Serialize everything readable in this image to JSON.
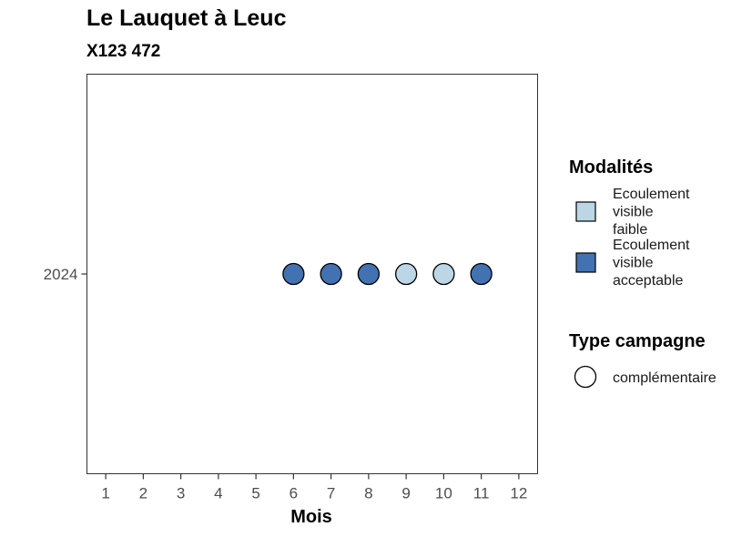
{
  "chart_data": {
    "type": "scatter",
    "title": "Le Lauquet à Leuc",
    "subtitle": "X123 472",
    "xlabel": "Mois",
    "ylabel": "",
    "x_ticks": [
      "1",
      "2",
      "3",
      "4",
      "5",
      "6",
      "7",
      "8",
      "9",
      "10",
      "11",
      "12"
    ],
    "xlim": [
      0.5,
      12.5
    ],
    "y_categories": [
      "2024"
    ],
    "points": [
      {
        "mois": 6,
        "annee": "2024",
        "modalite": "Ecoulement visible acceptable",
        "type_campagne": "complémentaire"
      },
      {
        "mois": 7,
        "annee": "2024",
        "modalite": "Ecoulement visible acceptable",
        "type_campagne": "complémentaire"
      },
      {
        "mois": 8,
        "annee": "2024",
        "modalite": "Ecoulement visible acceptable",
        "type_campagne": "complémentaire"
      },
      {
        "mois": 9,
        "annee": "2024",
        "modalite": "Ecoulement visible faible",
        "type_campagne": "complémentaire"
      },
      {
        "mois": 10,
        "annee": "2024",
        "modalite": "Ecoulement visible faible",
        "type_campagne": "complémentaire"
      },
      {
        "mois": 11,
        "annee": "2024",
        "modalite": "Ecoulement visible acceptable",
        "type_campagne": "complémentaire"
      }
    ],
    "grid": false,
    "legend_position": "right",
    "legends": {
      "modalites": {
        "title": "Modalités",
        "items": [
          {
            "lines": [
              "Ecoulement",
              "visible",
              "faible"
            ],
            "key": "Ecoulement visible faible",
            "color": "#bcd6e6"
          },
          {
            "lines": [
              "Ecoulement",
              "visible",
              "acceptable"
            ],
            "key": "Ecoulement visible acceptable",
            "color": "#4272b2"
          }
        ]
      },
      "type_campagne": {
        "title": "Type campagne",
        "items": [
          {
            "label": "complémentaire",
            "shape": "circle"
          }
        ]
      }
    }
  }
}
